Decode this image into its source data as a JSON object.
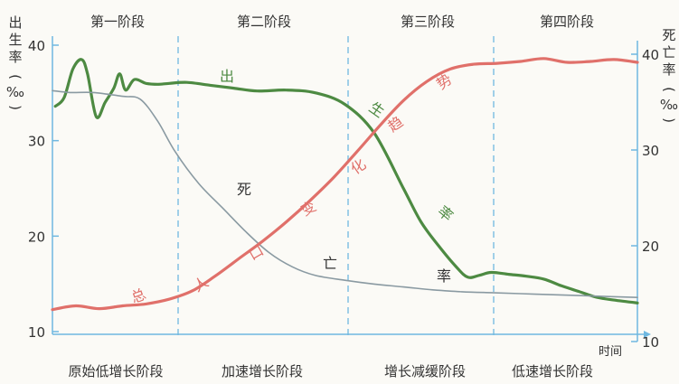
{
  "chart_data": {
    "type": "line",
    "stages": [
      "第一阶段",
      "第二阶段",
      "第三阶段",
      "第四阶段"
    ],
    "stage_names": [
      "原始低增长阶段",
      "加速增长阶段",
      "增长减缓阶段",
      "低速增长阶段"
    ],
    "left_axis": {
      "label_chars": [
        "出",
        "生",
        "率",
        "(",
        "‰",
        ")"
      ],
      "ticks": [
        10,
        20,
        30,
        40
      ],
      "ylim": [
        10,
        42
      ]
    },
    "right_axis": {
      "label_chars": [
        "死",
        "亡",
        "率",
        "(",
        "‰",
        ")"
      ],
      "ticks": [
        10,
        20,
        30,
        40
      ],
      "ylim": [
        10,
        42
      ]
    },
    "xlabel": "时间",
    "series": [
      {
        "name": "出生率",
        "color": "#4d8a42",
        "axis": "left",
        "label_chars": [
          "出",
          "生",
          "率"
        ],
        "points": [
          [
            0.5,
            33.6
          ],
          [
            2,
            34.5
          ],
          [
            3.5,
            37.5
          ],
          [
            5,
            38.5
          ],
          [
            6,
            37
          ],
          [
            7.5,
            32.5
          ],
          [
            9,
            34
          ],
          [
            10.5,
            35.5
          ],
          [
            11.5,
            37
          ],
          [
            12.5,
            35.3
          ],
          [
            14,
            36.4
          ],
          [
            16,
            36
          ],
          [
            18,
            35.9
          ],
          [
            20,
            36
          ],
          [
            23,
            36.1
          ],
          [
            27,
            35.8
          ],
          [
            31,
            35.5
          ],
          [
            35,
            35.2
          ],
          [
            40,
            35.3
          ],
          [
            45,
            35
          ],
          [
            50,
            33.8
          ],
          [
            55,
            30.8
          ],
          [
            60,
            25
          ],
          [
            63,
            21.5
          ],
          [
            66,
            19
          ],
          [
            69,
            16.8
          ],
          [
            71,
            15.7
          ],
          [
            73,
            15.9
          ],
          [
            75,
            16.2
          ],
          [
            78,
            16
          ],
          [
            81,
            15.8
          ],
          [
            84,
            15.5
          ],
          [
            87,
            14.8
          ],
          [
            90,
            14.2
          ],
          [
            93,
            13.6
          ],
          [
            96,
            13.3
          ],
          [
            100,
            13
          ]
        ]
      },
      {
        "name": "死亡率",
        "color": "#8a9aa2",
        "axis": "right",
        "label_chars": [
          "死",
          "亡",
          "率"
        ],
        "points": [
          [
            0,
            36.2
          ],
          [
            3,
            36
          ],
          [
            7,
            36
          ],
          [
            12,
            35.6
          ],
          [
            15,
            35.3
          ],
          [
            18,
            33
          ],
          [
            21,
            29.8
          ],
          [
            25,
            26.5
          ],
          [
            29,
            24
          ],
          [
            33,
            21.5
          ],
          [
            37,
            19.3
          ],
          [
            41,
            17.8
          ],
          [
            45,
            16.9
          ],
          [
            50,
            16.4
          ],
          [
            55,
            16
          ],
          [
            60,
            15.7
          ],
          [
            65,
            15.4
          ],
          [
            70,
            15.2
          ],
          [
            75,
            15.1
          ],
          [
            80,
            15
          ],
          [
            85,
            14.9
          ],
          [
            90,
            14.8
          ],
          [
            95,
            14.7
          ],
          [
            100,
            14.6
          ]
        ]
      },
      {
        "name": "总人口变化趋势",
        "color": "#e0706a",
        "axis": "left",
        "label_chars": [
          "总",
          "人",
          "口",
          "变",
          "化",
          "趋",
          "势"
        ],
        "points": [
          [
            0,
            12.3
          ],
          [
            4,
            12.7
          ],
          [
            8,
            12.4
          ],
          [
            12,
            12.7
          ],
          [
            16,
            12.9
          ],
          [
            20,
            13.4
          ],
          [
            24,
            14.3
          ],
          [
            28,
            15.9
          ],
          [
            32,
            17.7
          ],
          [
            36,
            19.5
          ],
          [
            40,
            21.5
          ],
          [
            44,
            23.7
          ],
          [
            48,
            26.1
          ],
          [
            52,
            28.8
          ],
          [
            56,
            31.6
          ],
          [
            60,
            34.2
          ],
          [
            64,
            36.2
          ],
          [
            68,
            37.5
          ],
          [
            72,
            38
          ],
          [
            76,
            38.1
          ],
          [
            80,
            38.3
          ],
          [
            84,
            38.6
          ],
          [
            88,
            38.2
          ],
          [
            92,
            38.3
          ],
          [
            96,
            38.5
          ],
          [
            100,
            38.2
          ]
        ]
      }
    ]
  }
}
